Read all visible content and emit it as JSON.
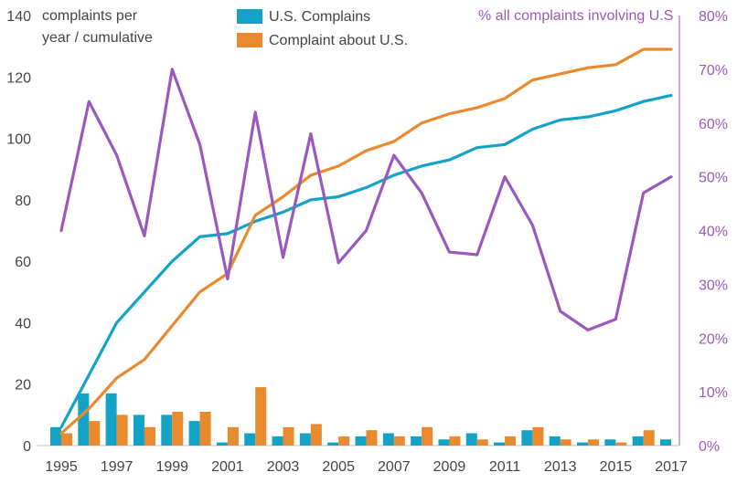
{
  "chart_data": {
    "type": "bar+line",
    "x": [
      1995,
      1996,
      1997,
      1998,
      1999,
      2000,
      2001,
      2002,
      2003,
      2004,
      2005,
      2006,
      2007,
      2008,
      2009,
      2010,
      2011,
      2012,
      2013,
      2014,
      2015,
      2016,
      2017
    ],
    "x_tick_labels": [
      "1995",
      "1997",
      "1999",
      "2001",
      "2003",
      "2005",
      "2007",
      "2009",
      "2011",
      "2013",
      "2015",
      "2017"
    ],
    "ylabel_left": [
      "complaints per",
      "year / cumulative"
    ],
    "ylabel_right": "% all complaints involving U.S",
    "ylim_left": [
      0,
      140
    ],
    "yticks_left": [
      "0",
      "20",
      "40",
      "60",
      "80",
      "100",
      "120",
      "140"
    ],
    "ylim_right": [
      0,
      80
    ],
    "yticks_right": [
      "0%",
      "10%",
      "20%",
      "30%",
      "40%",
      "50%",
      "60%",
      "70%",
      "80%"
    ],
    "grid": false,
    "legend_position": "top",
    "bar_series": [
      {
        "name": "U.S. Complains",
        "color": "#12a3c7",
        "values": [
          6,
          17,
          17,
          10,
          10,
          8,
          1,
          4,
          3,
          4,
          1,
          3,
          4,
          3,
          2,
          4,
          1,
          5,
          3,
          1,
          2,
          3,
          2
        ]
      },
      {
        "name": "Complaint about U.S.",
        "color": "#ea8a2e",
        "values": [
          4,
          8,
          10,
          6,
          11,
          11,
          6,
          19,
          6,
          7,
          3,
          5,
          3,
          6,
          3,
          2,
          3,
          6,
          2,
          2,
          1,
          5,
          0
        ]
      }
    ],
    "line_series": [
      {
        "name": "U.S. Complains",
        "color": "#12a3c7",
        "axis": "left",
        "values": [
          6,
          23,
          40,
          50,
          60,
          68,
          69,
          73,
          76,
          80,
          81,
          84,
          88,
          91,
          93,
          97,
          98,
          103,
          106,
          107,
          109,
          112,
          114
        ]
      },
      {
        "name": "Complaint about U.S.",
        "color": "#ea8a2e",
        "axis": "left",
        "values": [
          4,
          12,
          22,
          28,
          39,
          50,
          56,
          75,
          81,
          88,
          91,
          96,
          99,
          105,
          108,
          110,
          113,
          119,
          121,
          123,
          124,
          129,
          129
        ]
      },
      {
        "name": "% all complaints involving U.S",
        "color": "#9c59bd",
        "axis": "right",
        "values": [
          40,
          64,
          54,
          39,
          70,
          56,
          31,
          62,
          35,
          58,
          34,
          40,
          54,
          47,
          36,
          35.5,
          50,
          41,
          25,
          21.5,
          23.5,
          47,
          50
        ]
      }
    ]
  }
}
